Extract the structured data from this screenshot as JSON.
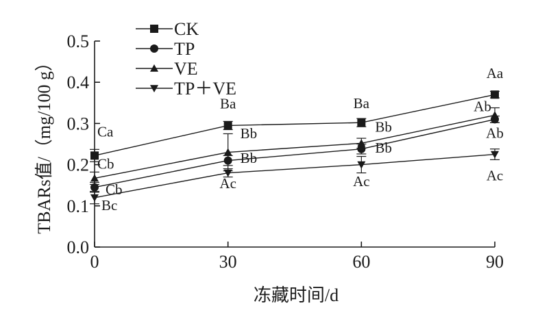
{
  "chart_data": {
    "type": "line",
    "title": "",
    "xlabel": "冻藏时间/d",
    "ylabel": "TBARs值/（mg/100 g）",
    "x": [
      0,
      30,
      60,
      90
    ],
    "x_ticks": [
      "0",
      "30",
      "60",
      "90"
    ],
    "y_ticks": [
      "0.0",
      "0.1",
      "0.2",
      "0.3",
      "0.4",
      "0.5"
    ],
    "xlim": [
      0,
      90
    ],
    "ylim": [
      0,
      0.5
    ],
    "grid": false,
    "legend_position": "top-left",
    "series": [
      {
        "name": "CK",
        "marker": "square",
        "values": [
          0.222,
          0.295,
          0.302,
          0.37
        ],
        "errors": [
          0.015,
          0.01,
          0.01,
          0.008
        ],
        "labels": [
          "Ca",
          "Ba",
          "Ba",
          "Aa"
        ]
      },
      {
        "name": "TP",
        "marker": "circle",
        "values": [
          0.145,
          0.21,
          0.238,
          0.31
        ],
        "errors": [
          0.012,
          0.012,
          0.012,
          0.008
        ],
        "labels": [
          "Cb",
          "Bb",
          "Bb",
          "Ab"
        ]
      },
      {
        "name": "VE",
        "marker": "triangle-up",
        "values": [
          0.167,
          0.23,
          0.252,
          0.32
        ],
        "errors": [
          0.015,
          0.045,
          0.012,
          0.018
        ],
        "labels": [
          "Cb",
          "Bb",
          "Bb",
          "Ab"
        ]
      },
      {
        "name": "TP＋VE",
        "marker": "triangle-down",
        "values": [
          0.12,
          0.18,
          0.2,
          0.225
        ],
        "errors": [
          0.015,
          0.01,
          0.02,
          0.013
        ],
        "labels": [
          "Bc",
          "Ac",
          "Ac",
          "Ac"
        ]
      }
    ]
  }
}
